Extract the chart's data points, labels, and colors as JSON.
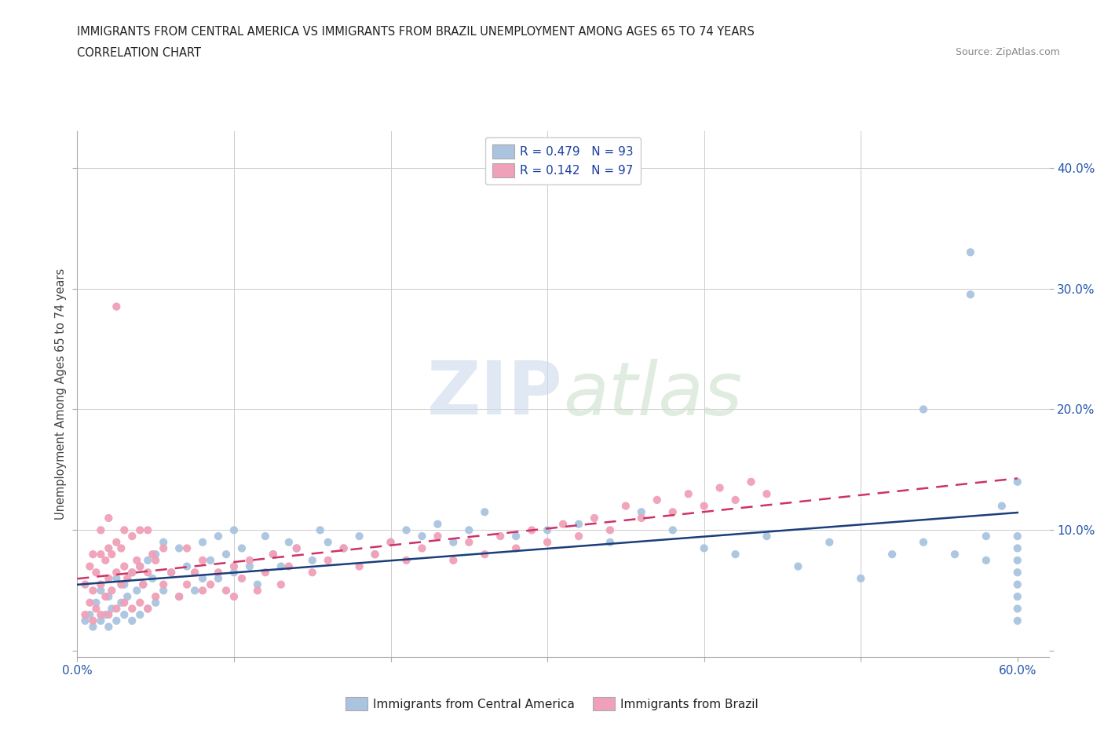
{
  "title_line1": "IMMIGRANTS FROM CENTRAL AMERICA VS IMMIGRANTS FROM BRAZIL UNEMPLOYMENT AMONG AGES 65 TO 74 YEARS",
  "title_line2": "CORRELATION CHART",
  "source_text": "Source: ZipAtlas.com",
  "ylabel": "Unemployment Among Ages 65 to 74 years",
  "xlim": [
    0.0,
    0.62
  ],
  "ylim": [
    -0.005,
    0.43
  ],
  "x_tick_positions": [
    0.0,
    0.1,
    0.2,
    0.3,
    0.4,
    0.5,
    0.6
  ],
  "y_tick_positions": [
    0.0,
    0.1,
    0.2,
    0.3,
    0.4
  ],
  "legend_r1": "R = 0.479   N = 93",
  "legend_r2": "R = 0.142   N = 97",
  "color_blue": "#aac4e0",
  "color_pink": "#f0a0b8",
  "line_color_blue": "#1a3e7a",
  "line_color_pink": "#cc3366",
  "watermark_color": "#d8e4f0",
  "watermark_text": "ZIPatlas",
  "blue_x": [
    0.005,
    0.008,
    0.01,
    0.012,
    0.015,
    0.015,
    0.018,
    0.02,
    0.02,
    0.022,
    0.025,
    0.025,
    0.028,
    0.03,
    0.03,
    0.032,
    0.035,
    0.035,
    0.038,
    0.04,
    0.04,
    0.042,
    0.045,
    0.045,
    0.048,
    0.05,
    0.05,
    0.055,
    0.055,
    0.06,
    0.065,
    0.065,
    0.07,
    0.075,
    0.08,
    0.08,
    0.085,
    0.09,
    0.09,
    0.095,
    0.1,
    0.1,
    0.105,
    0.11,
    0.115,
    0.12,
    0.125,
    0.13,
    0.135,
    0.14,
    0.15,
    0.155,
    0.16,
    0.17,
    0.18,
    0.19,
    0.2,
    0.21,
    0.22,
    0.23,
    0.24,
    0.25,
    0.26,
    0.28,
    0.3,
    0.32,
    0.34,
    0.36,
    0.38,
    0.4,
    0.42,
    0.44,
    0.46,
    0.48,
    0.5,
    0.52,
    0.54,
    0.54,
    0.56,
    0.57,
    0.57,
    0.58,
    0.58,
    0.59,
    0.6,
    0.6,
    0.6,
    0.6,
    0.6,
    0.6,
    0.6,
    0.6,
    0.6
  ],
  "blue_y": [
    0.025,
    0.03,
    0.02,
    0.04,
    0.025,
    0.05,
    0.03,
    0.02,
    0.045,
    0.035,
    0.025,
    0.06,
    0.04,
    0.03,
    0.055,
    0.045,
    0.025,
    0.065,
    0.05,
    0.03,
    0.07,
    0.055,
    0.035,
    0.075,
    0.06,
    0.04,
    0.08,
    0.05,
    0.09,
    0.065,
    0.045,
    0.085,
    0.07,
    0.05,
    0.06,
    0.09,
    0.075,
    0.06,
    0.095,
    0.08,
    0.065,
    0.1,
    0.085,
    0.07,
    0.055,
    0.095,
    0.08,
    0.07,
    0.09,
    0.085,
    0.075,
    0.1,
    0.09,
    0.085,
    0.095,
    0.08,
    0.09,
    0.1,
    0.095,
    0.105,
    0.09,
    0.1,
    0.115,
    0.095,
    0.1,
    0.105,
    0.09,
    0.115,
    0.1,
    0.085,
    0.08,
    0.095,
    0.07,
    0.09,
    0.06,
    0.08,
    0.2,
    0.09,
    0.08,
    0.33,
    0.295,
    0.095,
    0.075,
    0.12,
    0.14,
    0.095,
    0.075,
    0.085,
    0.065,
    0.055,
    0.045,
    0.035,
    0.025
  ],
  "pink_x": [
    0.005,
    0.005,
    0.008,
    0.008,
    0.01,
    0.01,
    0.01,
    0.012,
    0.012,
    0.015,
    0.015,
    0.015,
    0.015,
    0.018,
    0.018,
    0.02,
    0.02,
    0.02,
    0.02,
    0.022,
    0.022,
    0.025,
    0.025,
    0.025,
    0.025,
    0.028,
    0.028,
    0.03,
    0.03,
    0.03,
    0.032,
    0.035,
    0.035,
    0.035,
    0.038,
    0.04,
    0.04,
    0.04,
    0.042,
    0.045,
    0.045,
    0.045,
    0.048,
    0.05,
    0.05,
    0.055,
    0.055,
    0.06,
    0.065,
    0.07,
    0.07,
    0.075,
    0.08,
    0.08,
    0.085,
    0.09,
    0.095,
    0.1,
    0.1,
    0.105,
    0.11,
    0.115,
    0.12,
    0.125,
    0.13,
    0.135,
    0.14,
    0.15,
    0.16,
    0.17,
    0.18,
    0.19,
    0.2,
    0.21,
    0.22,
    0.23,
    0.24,
    0.25,
    0.26,
    0.27,
    0.28,
    0.29,
    0.3,
    0.31,
    0.32,
    0.33,
    0.34,
    0.35,
    0.36,
    0.37,
    0.38,
    0.39,
    0.4,
    0.41,
    0.42,
    0.43,
    0.44
  ],
  "pink_y": [
    0.03,
    0.055,
    0.04,
    0.07,
    0.025,
    0.05,
    0.08,
    0.035,
    0.065,
    0.03,
    0.055,
    0.08,
    0.1,
    0.045,
    0.075,
    0.03,
    0.06,
    0.085,
    0.11,
    0.05,
    0.08,
    0.035,
    0.065,
    0.09,
    0.285,
    0.055,
    0.085,
    0.04,
    0.07,
    0.1,
    0.06,
    0.035,
    0.065,
    0.095,
    0.075,
    0.04,
    0.07,
    0.1,
    0.055,
    0.035,
    0.065,
    0.1,
    0.08,
    0.045,
    0.075,
    0.055,
    0.085,
    0.065,
    0.045,
    0.055,
    0.085,
    0.065,
    0.05,
    0.075,
    0.055,
    0.065,
    0.05,
    0.07,
    0.045,
    0.06,
    0.075,
    0.05,
    0.065,
    0.08,
    0.055,
    0.07,
    0.085,
    0.065,
    0.075,
    0.085,
    0.07,
    0.08,
    0.09,
    0.075,
    0.085,
    0.095,
    0.075,
    0.09,
    0.08,
    0.095,
    0.085,
    0.1,
    0.09,
    0.105,
    0.095,
    0.11,
    0.1,
    0.12,
    0.11,
    0.125,
    0.115,
    0.13,
    0.12,
    0.135,
    0.125,
    0.14,
    0.13
  ]
}
